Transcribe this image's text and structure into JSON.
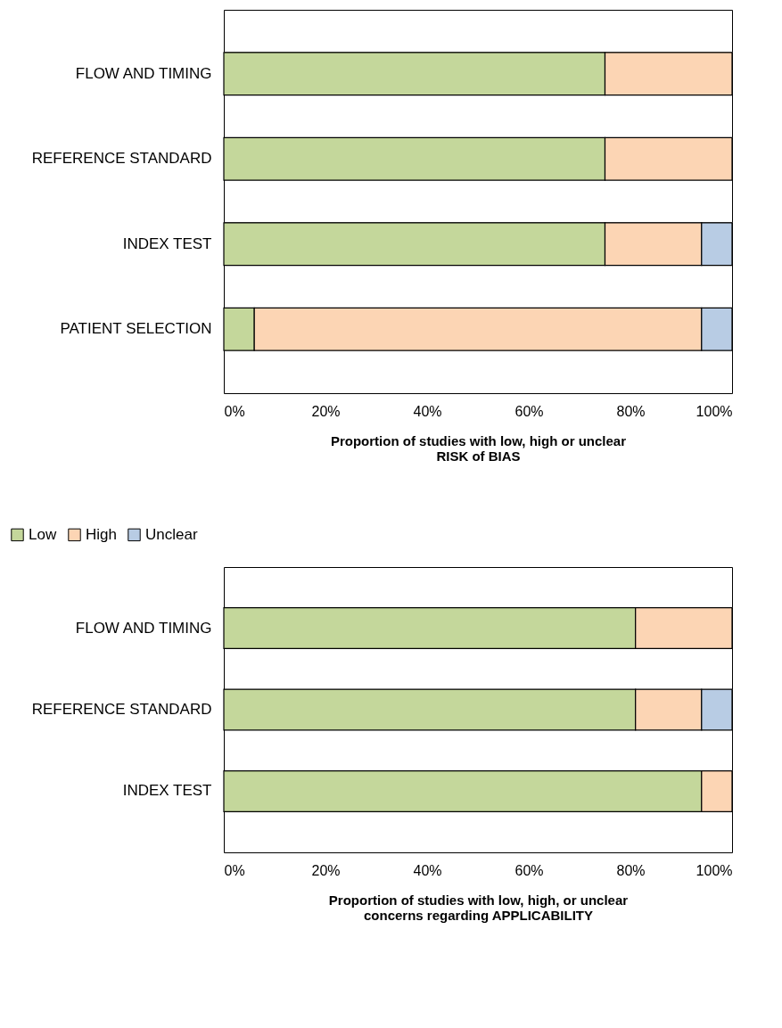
{
  "chart_data": [
    {
      "type": "bar",
      "orientation": "horizontal",
      "stacked": true,
      "categories": [
        "FLOW AND TIMING",
        "REFERENCE STANDARD",
        "INDEX TEST",
        "PATIENT SELECTION"
      ],
      "series": [
        {
          "color": "#c4d79b",
          "values": [
            75,
            75,
            75,
            6
          ]
        },
        {
          "color": "#fcd5b4",
          "values": [
            25,
            25,
            19,
            88
          ]
        },
        {
          "color": "#b8cce4",
          "values": [
            0,
            0,
            6,
            6
          ]
        }
      ],
      "xlim": [
        0,
        100
      ],
      "xticks": [
        {
          "value": 0,
          "label": "0%"
        },
        {
          "value": 20,
          "label": "20%"
        },
        {
          "value": 40,
          "label": "40%"
        },
        {
          "value": 60,
          "label": "60%"
        },
        {
          "value": 80,
          "label": "80%"
        },
        {
          "value": 100,
          "label": "100%"
        }
      ],
      "xlabel": "Proportion of studies with low, high or unclear\nRISK of BIAS",
      "grid": "y"
    },
    {
      "type": "bar",
      "orientation": "horizontal",
      "stacked": true,
      "categories": [
        "FLOW AND TIMING",
        "REFERENCE STANDARD",
        "INDEX TEST"
      ],
      "series": [
        {
          "name": "Low",
          "color": "#c4d79b",
          "values": [
            81,
            81,
            94
          ]
        },
        {
          "name": "High",
          "color": "#fcd5b4",
          "values": [
            19,
            13,
            6
          ]
        },
        {
          "name": "Unclear",
          "color": "#b8cce4",
          "values": [
            0,
            6,
            0
          ]
        }
      ],
      "xlim": [
        0,
        100
      ],
      "xticks": [
        {
          "value": 0,
          "label": "0%"
        },
        {
          "value": 20,
          "label": "20%"
        },
        {
          "value": 40,
          "label": "40%"
        },
        {
          "value": 60,
          "label": "60%"
        },
        {
          "value": 80,
          "label": "80%"
        },
        {
          "value": 100,
          "label": "100%"
        }
      ],
      "xlabel": "Proportion of studies with low, high, or unclear\nconcerns regarding APPLICABILITY",
      "grid": "y",
      "legend": "top left"
    }
  ]
}
